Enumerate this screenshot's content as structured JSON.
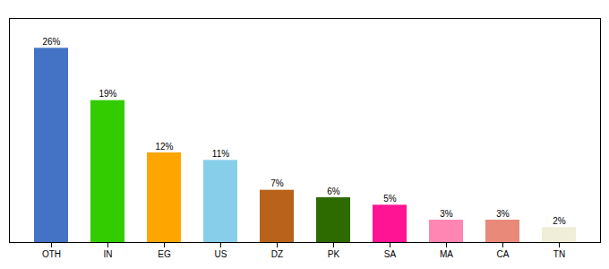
{
  "chart_data": {
    "type": "bar",
    "categories": [
      "OTH",
      "IN",
      "EG",
      "US",
      "DZ",
      "PK",
      "SA",
      "MA",
      "CA",
      "TN"
    ],
    "values": [
      26,
      19,
      12,
      11,
      7,
      6,
      5,
      3,
      3,
      2
    ],
    "value_labels": [
      "26%",
      "19%",
      "12%",
      "11%",
      "7%",
      "6%",
      "5%",
      "3%",
      "3%",
      "2%"
    ],
    "colors": [
      "#4472C4",
      "#33CC00",
      "#FFA500",
      "#87CEEB",
      "#B8621B",
      "#2D6A00",
      "#FF1493",
      "#FF85B3",
      "#E8897A",
      "#F0EDD8"
    ],
    "ylim": [
      0,
      30
    ],
    "data_labels": true,
    "tick_labels": "x",
    "grid": false
  }
}
